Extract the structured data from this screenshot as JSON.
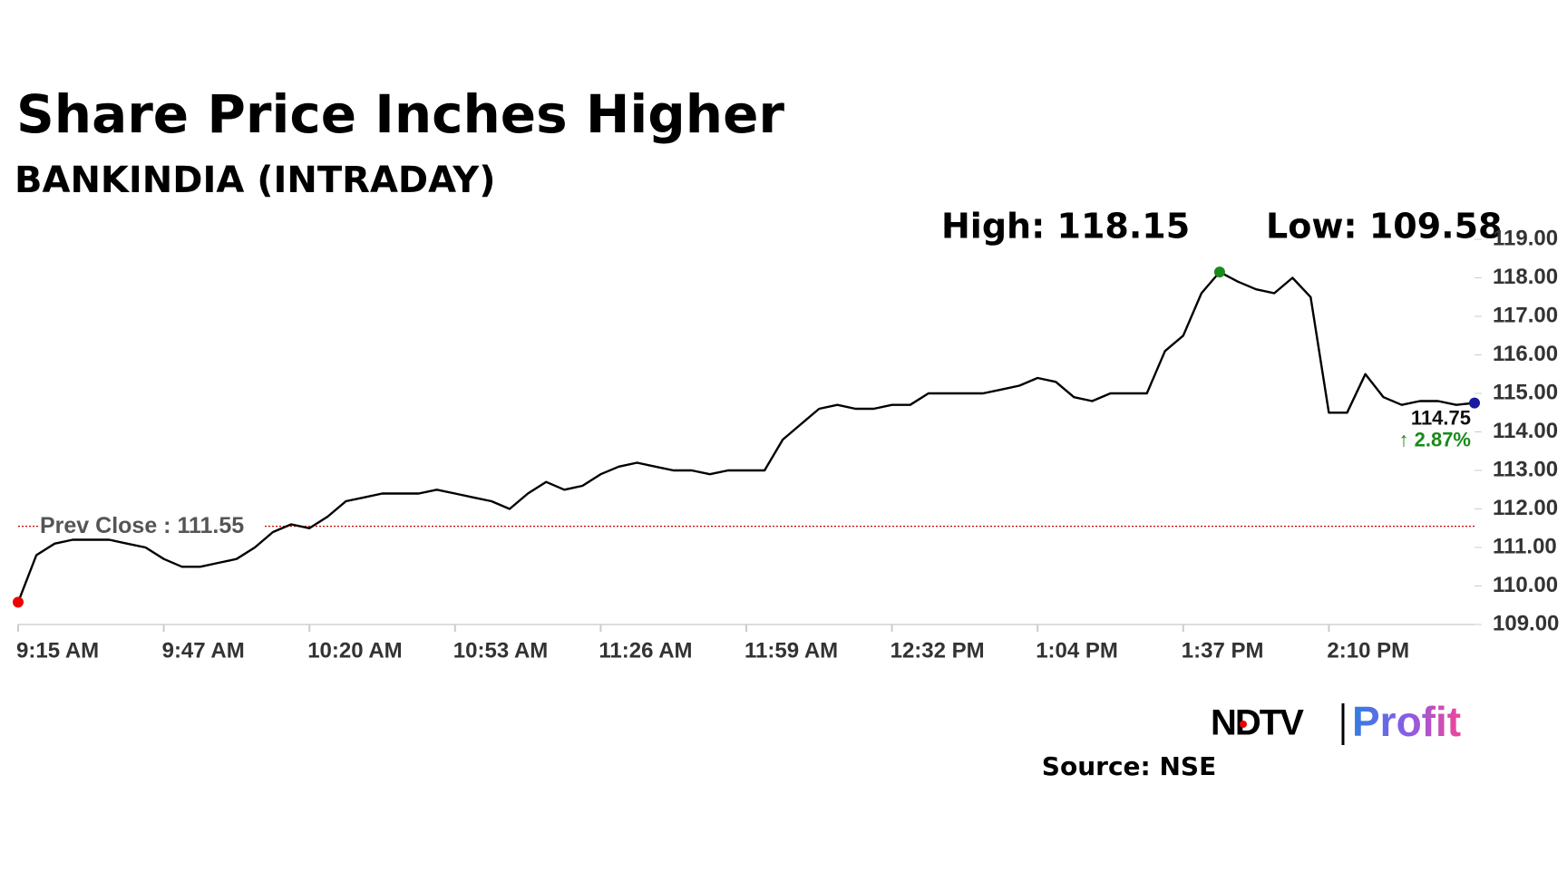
{
  "chart_data": {
    "type": "line",
    "title": "Share Price Inches Higher",
    "subtitle": "BANKINDIA (INTRADAY)",
    "annotations": [
      "High: 118.15",
      "Low: 109.58"
    ],
    "prev_close": 111.55,
    "prev_close_label": "Prev Close : 111.55",
    "last_label": "114.75",
    "change_label": "↑ 2.87%",
    "source": "Source: NSE",
    "logo": [
      "NDTV",
      "Profit"
    ],
    "color": "#000000",
    "categories": [
      "9:15 AM",
      null,
      null,
      null,
      null,
      null,
      null,
      null,
      "9:47 AM",
      null,
      null,
      null,
      null,
      null,
      null,
      null,
      "10:20 AM",
      null,
      null,
      null,
      null,
      null,
      null,
      null,
      "10:53 AM",
      null,
      null,
      null,
      null,
      null,
      null,
      null,
      "11:26 AM",
      null,
      null,
      null,
      null,
      null,
      null,
      null,
      "11:59 AM",
      null,
      null,
      null,
      null,
      null,
      null,
      null,
      "12:32 PM",
      null,
      null,
      null,
      null,
      null,
      null,
      null,
      "1:04 PM",
      null,
      null,
      null,
      null,
      null,
      null,
      null,
      "1:37 PM",
      null,
      null,
      null,
      null,
      null,
      null,
      null,
      "2:10 PM",
      null,
      null,
      null,
      null,
      null,
      null,
      null,
      null
    ],
    "values": [
      109.58,
      110.8,
      111.1,
      111.2,
      111.2,
      111.2,
      111.1,
      111.0,
      110.7,
      110.5,
      110.5,
      110.6,
      110.7,
      111.0,
      111.4,
      111.6,
      111.5,
      111.8,
      112.2,
      112.3,
      112.4,
      112.4,
      112.4,
      112.5,
      112.4,
      112.3,
      112.2,
      112.0,
      112.4,
      112.7,
      112.5,
      112.6,
      112.9,
      113.1,
      113.2,
      113.1,
      113.0,
      113.0,
      112.9,
      113.0,
      113.0,
      113.0,
      113.8,
      114.2,
      114.6,
      114.7,
      114.6,
      114.6,
      114.7,
      114.7,
      115.0,
      115.0,
      115.0,
      115.0,
      115.1,
      115.2,
      115.4,
      115.3,
      114.9,
      114.8,
      115.0,
      115.0,
      115.0,
      116.1,
      116.5,
      117.6,
      118.15,
      117.9,
      117.7,
      117.6,
      118.0,
      117.5,
      114.5,
      114.5,
      115.5,
      114.9,
      114.7,
      114.8,
      114.8,
      114.7,
      114.75
    ],
    "ylim": [
      109,
      119
    ],
    "yticks": [
      {
        "value": 109,
        "label": "109.00"
      },
      {
        "value": 110,
        "label": "110.00"
      },
      {
        "value": 111,
        "label": "111.00"
      },
      {
        "value": 112,
        "label": "112.00"
      },
      {
        "value": 113,
        "label": "113.00"
      },
      {
        "value": 114,
        "label": "114.00"
      },
      {
        "value": 115,
        "label": "115.00"
      },
      {
        "value": 116,
        "label": "116.00"
      },
      {
        "value": 117,
        "label": "117.00"
      },
      {
        "value": 118,
        "label": "118.00"
      },
      {
        "value": 119,
        "label": "119.00"
      }
    ],
    "grid": false
  }
}
